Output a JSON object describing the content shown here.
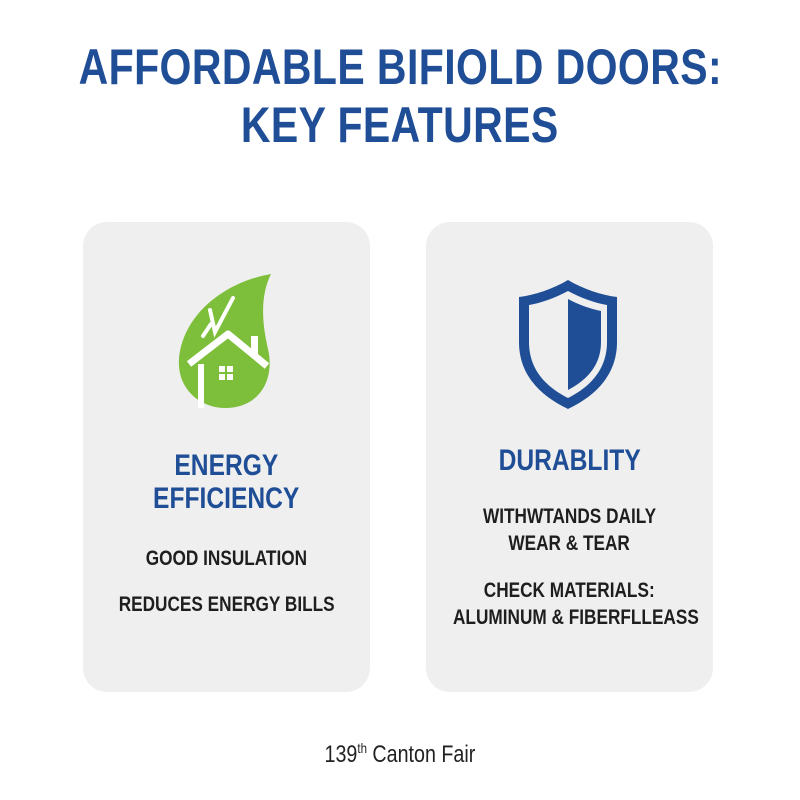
{
  "title": {
    "line1": "AFFORDABLE BIFIOLD DOORS:",
    "line2": "KEY FEATURES"
  },
  "colors": {
    "title_blue": "#1f4e96",
    "leaf_green": "#7dbf3a",
    "card_bg": "#efefef",
    "text_dark": "#1e1e1e"
  },
  "cards": [
    {
      "icon": "leaf-house-icon",
      "heading": [
        "ENERGY",
        "EFFICIENCY"
      ],
      "items": [
        "GOOD INSULATION",
        "REDUCES ENERGY BILLS"
      ]
    },
    {
      "icon": "shield-icon",
      "heading": [
        "DURABLITY"
      ],
      "items": [
        [
          "WITHWTANDS DAILY",
          "WEAR & TEAR"
        ],
        [
          "CHECK MATERIALS:",
          "ALUMINUM & FIBERFLLEASS"
        ]
      ]
    }
  ],
  "footer": {
    "number": "139",
    "suffix": "th",
    "text": "Canton Fair"
  }
}
